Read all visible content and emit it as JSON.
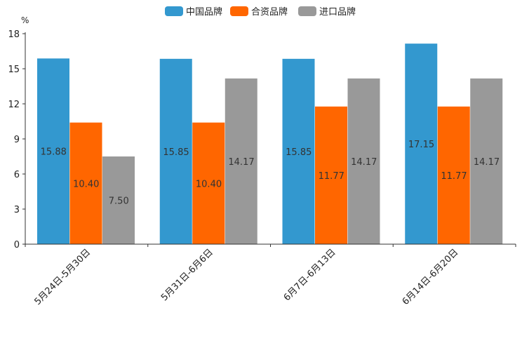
{
  "chart_data": {
    "type": "bar",
    "unit": "%",
    "categories": [
      "5月24日-5月30日",
      "5月31日-6月6日",
      "6月7日-6月13日",
      "6月14日-6月20日"
    ],
    "series": [
      {
        "name": "中国品牌",
        "color": "#3398cf",
        "values": [
          15.88,
          15.85,
          15.85,
          17.15
        ],
        "labels": [
          "15.88",
          "15.85",
          "15.85",
          "17.15"
        ]
      },
      {
        "name": "合资品牌",
        "color": "#ff6600",
        "values": [
          10.4,
          10.4,
          11.77,
          11.77
        ],
        "labels": [
          "10.40",
          "10.40",
          "11.77",
          "11.77"
        ]
      },
      {
        "name": "进口品牌",
        "color": "#999999",
        "values": [
          7.5,
          14.17,
          14.17,
          14.17
        ],
        "labels": [
          "7.50",
          "14.17",
          "14.17",
          "14.17"
        ]
      }
    ],
    "ylim": [
      0,
      18
    ],
    "yticks": [
      "0",
      "3",
      "6",
      "9",
      "12",
      "15",
      "18"
    ],
    "legend_position": "top-center",
    "grid": false
  }
}
